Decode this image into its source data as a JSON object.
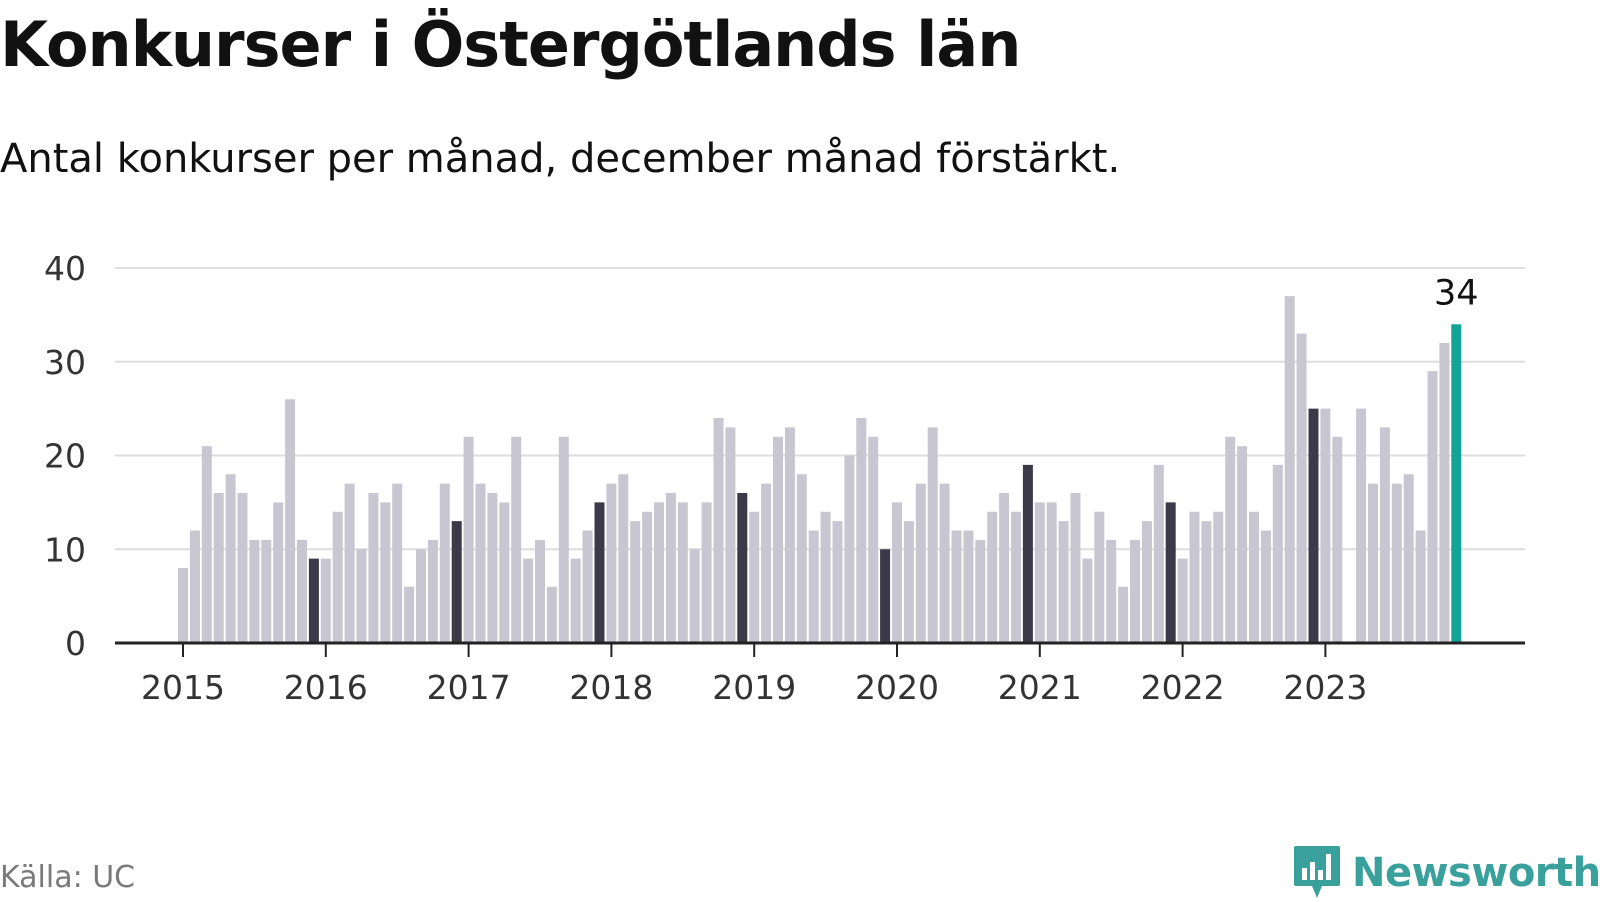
{
  "title": "Konkurser i Östergötlands län",
  "subtitle": "Antal konkurser per månad, december månad förstärkt.",
  "source": "Källa: UC",
  "brand": {
    "name": "Newsworthy",
    "icon": "bar-chart-bubble-icon"
  },
  "colors": {
    "bar_default": "#c8c7d1",
    "bar_december": "#3c3a48",
    "bar_latest": "#12a597",
    "grid": "#dddddd",
    "axis": "#222222",
    "brand": "#3aa09b"
  },
  "chart_data": {
    "type": "bar",
    "title": "Konkurser i Östergötlands län",
    "subtitle": "Antal konkurser per månad, december månad förstärkt.",
    "xlabel": "",
    "ylabel": "",
    "ylim": [
      0,
      40
    ],
    "yticks": [
      0,
      10,
      20,
      30,
      40
    ],
    "grid": true,
    "year_labels": [
      "2015",
      "2016",
      "2017",
      "2018",
      "2019",
      "2020",
      "2021",
      "2022",
      "2023"
    ],
    "start_month": "2015-01",
    "values": [
      8,
      12,
      21,
      16,
      18,
      16,
      11,
      11,
      15,
      26,
      11,
      9,
      9,
      14,
      17,
      10,
      16,
      15,
      17,
      6,
      10,
      11,
      17,
      13,
      22,
      17,
      16,
      15,
      22,
      9,
      11,
      6,
      22,
      9,
      12,
      15,
      17,
      18,
      13,
      14,
      15,
      16,
      15,
      10,
      15,
      24,
      23,
      16,
      14,
      17,
      22,
      23,
      18,
      12,
      14,
      13,
      20,
      24,
      22,
      10,
      15,
      13,
      17,
      23,
      17,
      12,
      12,
      11,
      14,
      16,
      14,
      19,
      15,
      15,
      13,
      16,
      9,
      14,
      11,
      6,
      11,
      13,
      19,
      15,
      9,
      14,
      13,
      14,
      22,
      21,
      14,
      12,
      19,
      37,
      33,
      25,
      25,
      22,
      0,
      25,
      17,
      23,
      17,
      18,
      12,
      29,
      32,
      34
    ],
    "highlight": "december",
    "annotation": {
      "label": "34",
      "value": 34,
      "target": "last"
    }
  }
}
